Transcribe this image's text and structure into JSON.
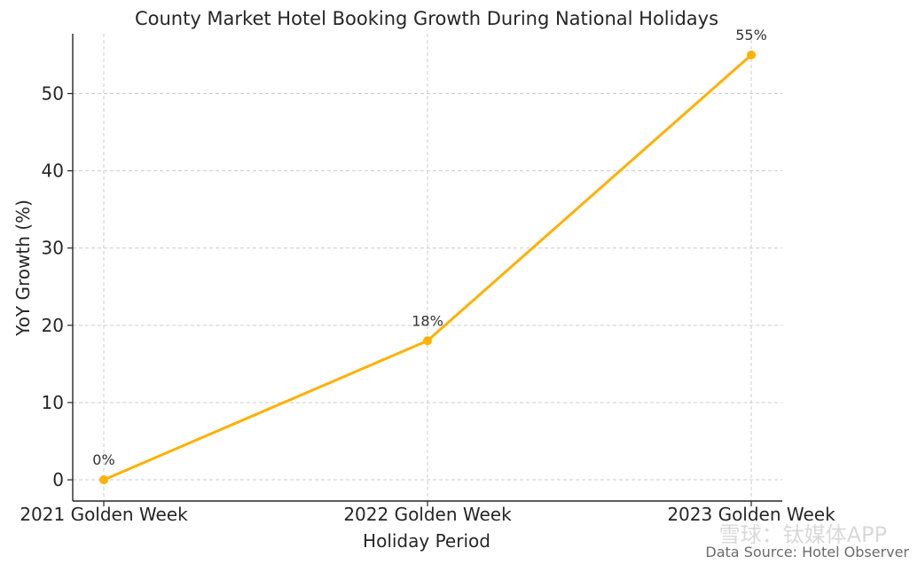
{
  "chart_data": {
    "type": "line",
    "title": "County Market Hotel Booking Growth During National Holidays",
    "xlabel": "Holiday Period",
    "ylabel": "YoY Growth (%)",
    "categories": [
      "2021 Golden Week",
      "2022 Golden Week",
      "2023 Golden Week"
    ],
    "series": [
      {
        "values": [
          0,
          18,
          55
        ],
        "color": "#FFB000"
      }
    ],
    "data_labels": [
      "0%",
      "18%",
      "55%"
    ],
    "yticks": [
      0,
      10,
      20,
      30,
      40,
      50
    ],
    "ytick_labels": [
      "0",
      "10",
      "20",
      "30",
      "40",
      "50"
    ],
    "ylim": [
      -2.75,
      57.75
    ],
    "grid": true,
    "grid_style": "dashed",
    "line_color": "#FFB000"
  },
  "source_note": "Data Source: Hotel Observer",
  "watermark": "雪球：钛媒体APP"
}
